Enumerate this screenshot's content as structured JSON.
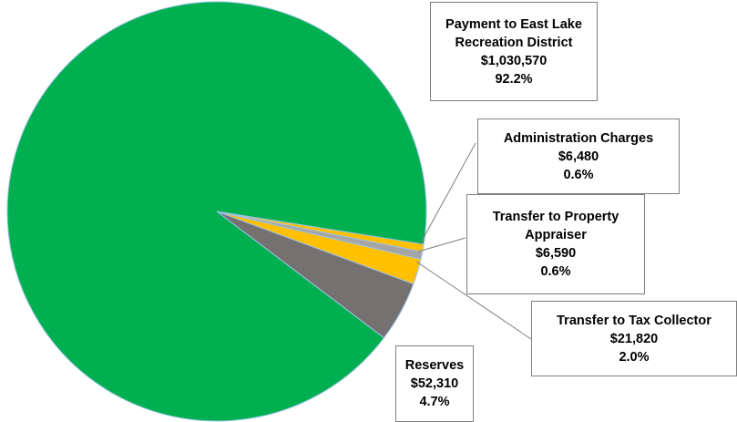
{
  "chart_data": {
    "type": "pie",
    "categories": [
      "Payment to East Lake Recreation District",
      "Administration Charges",
      "Transfer to Property Appraiser",
      "Transfer to Tax Collector",
      "Reserves"
    ],
    "values": [
      1030570,
      6480,
      6590,
      21820,
      52310
    ],
    "value_labels": [
      "$1,030,570",
      "$6,480",
      "$6,590",
      "$21,820",
      "$52,310"
    ],
    "percentages": [
      92.2,
      0.6,
      0.6,
      2.0,
      4.7
    ],
    "percentage_labels": [
      "92.2%",
      "0.6%",
      "0.6%",
      "2.0%",
      "4.7%"
    ],
    "colors": [
      "#00b050",
      "#ffc000",
      "#a5a5a5",
      "#ffc000",
      "#767171"
    ]
  }
}
